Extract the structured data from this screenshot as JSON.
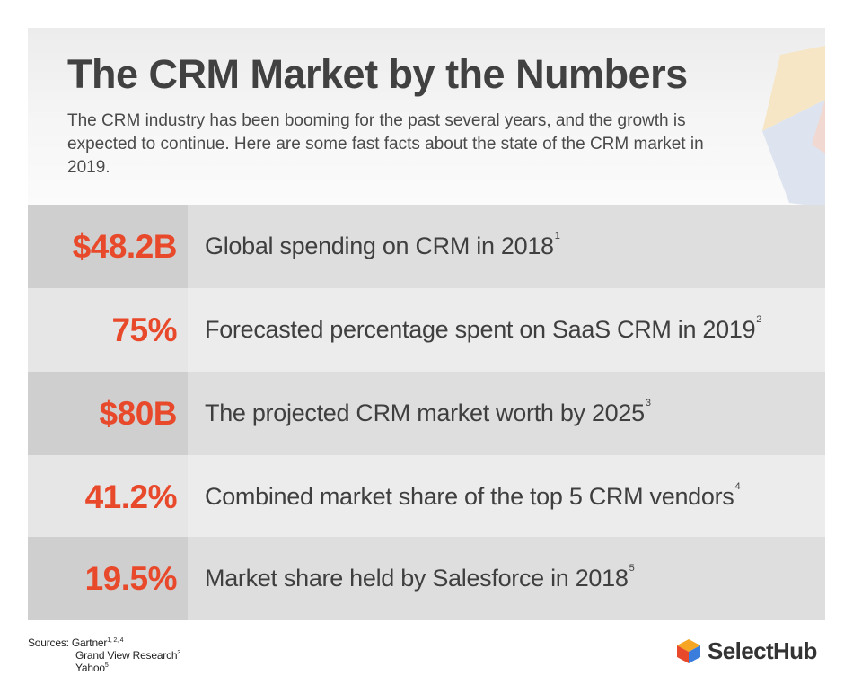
{
  "header": {
    "title": "The CRM Market by the Numbers",
    "intro": "The CRM industry has been booming for the past several years, and the growth is expected to continue. Here are some fast facts about the state of the CRM market in 2019."
  },
  "stats": [
    {
      "value": "$48.2B",
      "description": "Global spending on CRM in 2018",
      "footnote": "1"
    },
    {
      "value": "75%",
      "description": "Forecasted percentage spent on SaaS CRM in 2019",
      "footnote": "2"
    },
    {
      "value": "$80B",
      "description": "The projected CRM market worth by 2025",
      "footnote": "3"
    },
    {
      "value": "41.2%",
      "description": "Combined market share of the top 5 CRM vendors",
      "footnote": "4"
    },
    {
      "value": "19.5%",
      "description": "Market share held by Salesforce in 2018",
      "footnote": "5"
    }
  ],
  "sources": {
    "label": "Sources:",
    "items": [
      {
        "name": "Gartner",
        "refs": "1, 2, 4"
      },
      {
        "name": "Grand View Research",
        "refs": "3"
      },
      {
        "name": "Yahoo",
        "refs": "5"
      }
    ]
  },
  "brand": {
    "name": "SelectHub",
    "logo_icon": "cube-logo-icon",
    "logo_colors": [
      "#e8492b",
      "#f6a623",
      "#3b7ddd"
    ]
  },
  "colors": {
    "accent": "#e8492b",
    "text": "#414141"
  }
}
